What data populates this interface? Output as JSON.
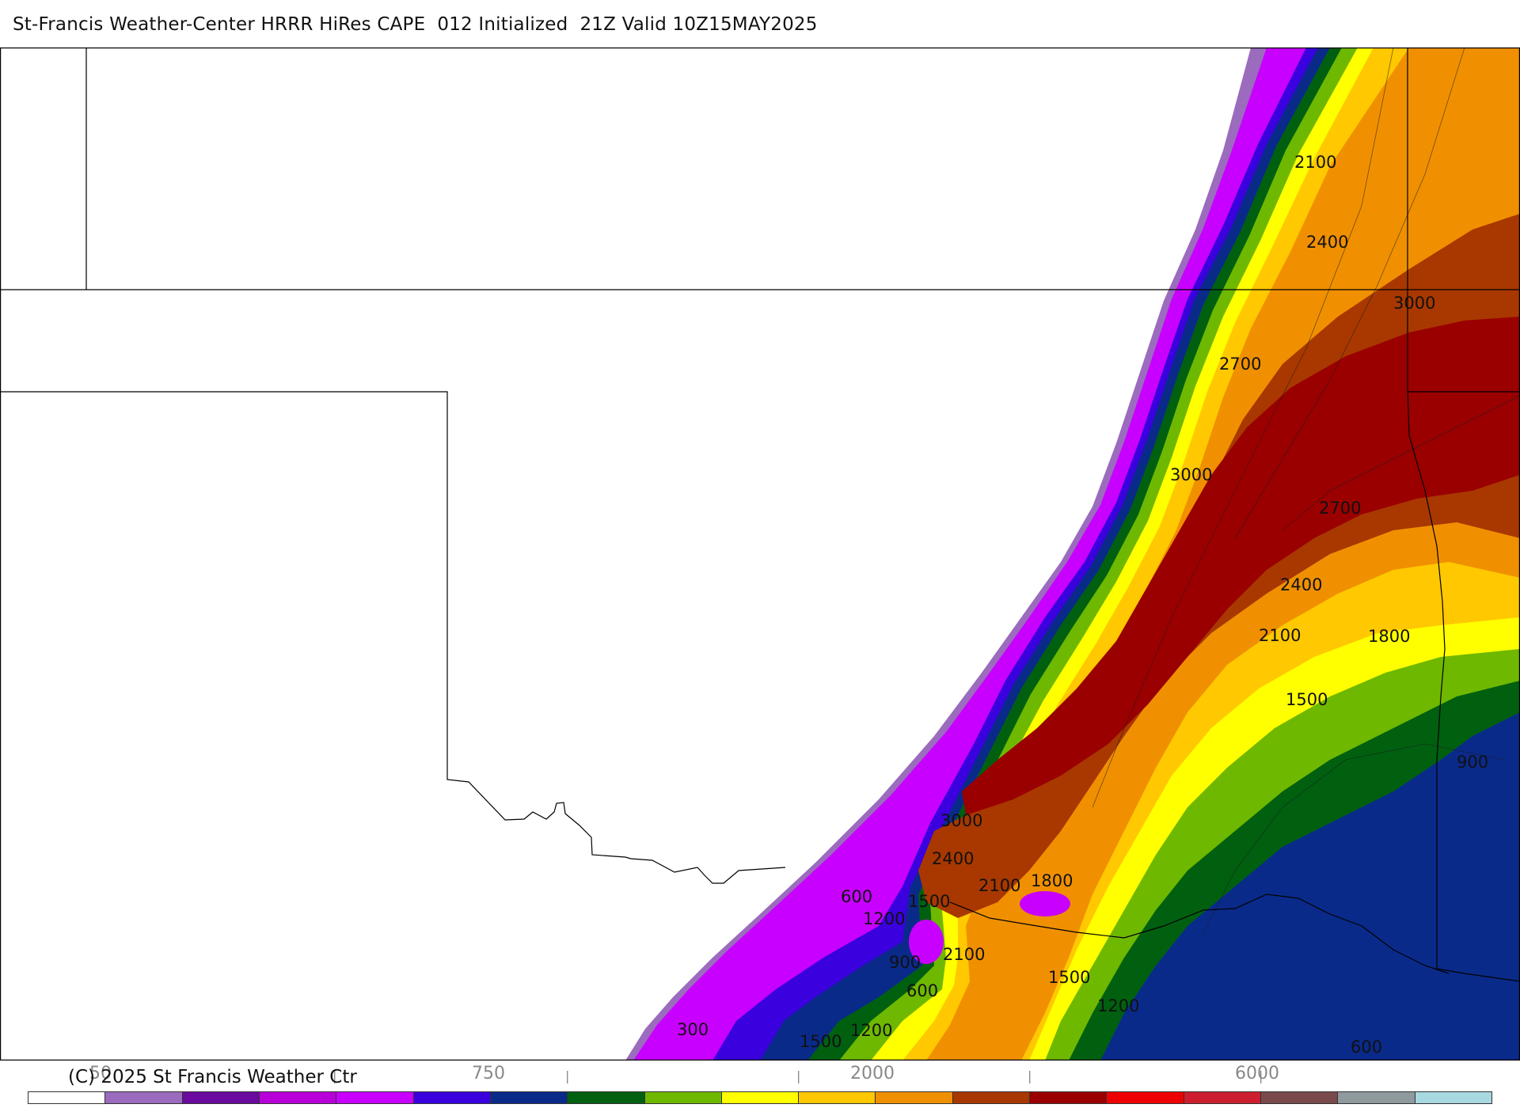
{
  "header": {
    "title": "St-Francis Weather-Center HRRR HiRes CAPE  012 Initialized  21Z Valid 10Z15MAY2025"
  },
  "map": {
    "contour_labels": [
      "300",
      "600",
      "900",
      "1200",
      "1500",
      "1800",
      "2100",
      "2400",
      "2700",
      "3000"
    ],
    "labels": [
      {
        "text": "2100",
        "key": "a1"
      },
      {
        "text": "2400",
        "key": "a2"
      },
      {
        "text": "3000",
        "key": "a3"
      },
      {
        "text": "2700",
        "key": "a4"
      },
      {
        "text": "3000",
        "key": "a5"
      },
      {
        "text": "2700",
        "key": "a6"
      },
      {
        "text": "2400",
        "key": "a7"
      },
      {
        "text": "2100",
        "key": "a8"
      },
      {
        "text": "1800",
        "key": "a9"
      },
      {
        "text": "1500",
        "key": "a10"
      },
      {
        "text": "900",
        "key": "a11"
      },
      {
        "text": "3000",
        "key": "a12"
      },
      {
        "text": "2400",
        "key": "a13"
      },
      {
        "text": "2100",
        "key": "a14"
      },
      {
        "text": "1800",
        "key": "a15"
      },
      {
        "text": "600",
        "key": "a16"
      },
      {
        "text": "1500",
        "key": "a17"
      },
      {
        "text": "1200",
        "key": "a18"
      },
      {
        "text": "900",
        "key": "a19"
      },
      {
        "text": "2100",
        "key": "a20"
      },
      {
        "text": "600",
        "key": "a21"
      },
      {
        "text": "1500",
        "key": "a22"
      },
      {
        "text": "1200",
        "key": "a23"
      },
      {
        "text": "300",
        "key": "a24"
      },
      {
        "text": "1500",
        "key": "a25"
      },
      {
        "text": "1200",
        "key": "a26"
      },
      {
        "text": "600",
        "key": "a27"
      }
    ]
  },
  "footer": {
    "copyright": "(C) 2025 St Francis Weather Ctr",
    "tick_labels": [
      "50",
      "750",
      "2000",
      "6000"
    ]
  },
  "colorbar": {
    "colors": [
      "#ffffff",
      "#9b6bbd",
      "#6a0a9e",
      "#b800d8",
      "#c800ff",
      "#3a00dd",
      "#0a2a8a",
      "#006010",
      "#6fb800",
      "#ffff00",
      "#ffc800",
      "#f09000",
      "#a83800",
      "#9a0000",
      "#ee0000",
      "#cc1e2e",
      "#7a4a4a",
      "#8e9a9e",
      "#a8d8e0"
    ]
  },
  "shading_colors": {
    "lavender": "#9b6bbd",
    "magenta": "#c800ff",
    "blue": "#3a00dd",
    "navy": "#0a2a8a",
    "dkgreen": "#006010",
    "ltgreen": "#6fb800",
    "yellow": "#ffff00",
    "gold": "#ffc800",
    "orange": "#f09000",
    "rust": "#a83800",
    "dkred": "#9a0000"
  }
}
